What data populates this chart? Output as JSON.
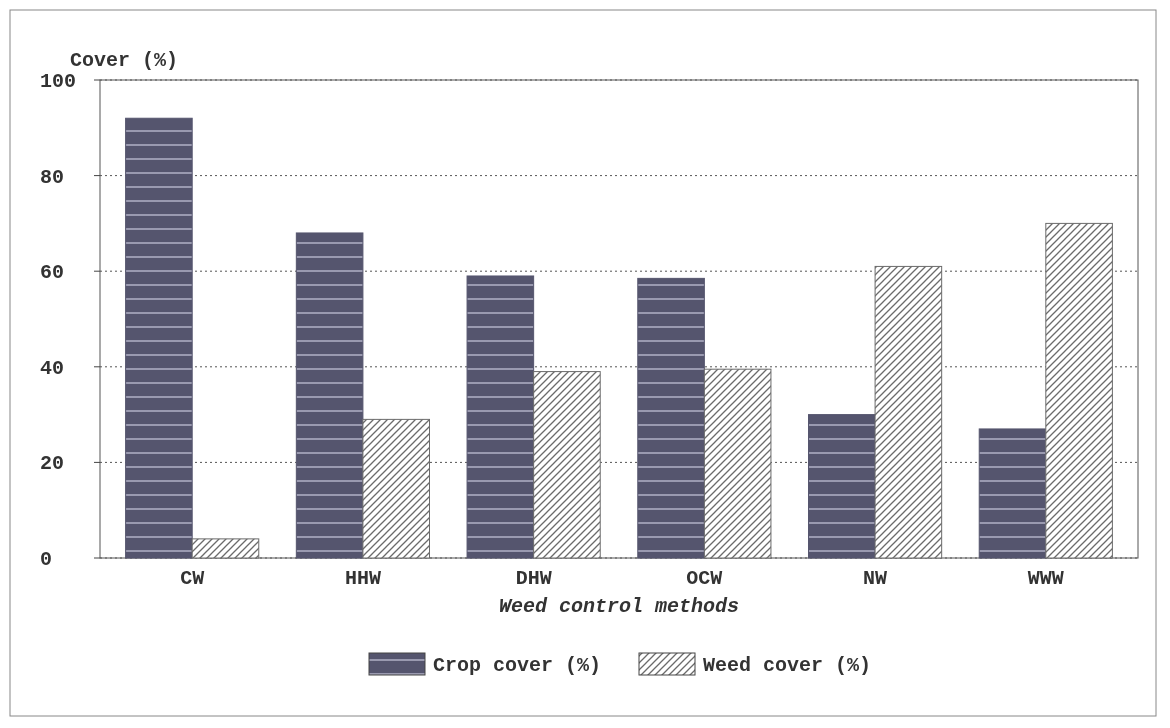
{
  "chart_data": {
    "type": "bar",
    "categories": [
      "CW",
      "HHW",
      "DHW",
      "OCW",
      "NW",
      "WWW"
    ],
    "series": [
      {
        "name": "Crop cover (%)",
        "color": "#55556e",
        "values": [
          92,
          68,
          59,
          58.5,
          30,
          27
        ]
      },
      {
        "name": "Weed cover (%)",
        "color": "#6b6b6b",
        "values": [
          4,
          29,
          39,
          39.5,
          61,
          70
        ]
      }
    ],
    "ylabel": "Cover (%)",
    "xlabel": "Weed control methods",
    "ylim": [
      0,
      100
    ],
    "yticks": [
      0,
      20,
      40,
      60,
      80,
      100
    ],
    "grid": "y",
    "legend": "bottom"
  }
}
